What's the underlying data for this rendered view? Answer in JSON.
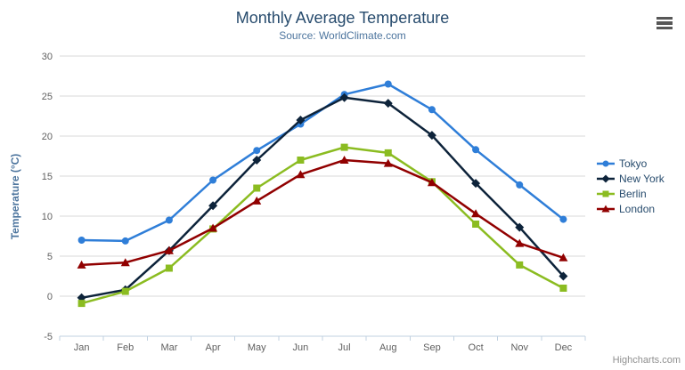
{
  "chart_data": {
    "type": "line",
    "title": "Monthly Average Temperature",
    "subtitle": "Source: WorldClimate.com",
    "xlabel": "",
    "ylabel": "Temperature (°C)",
    "ylim": [
      -5,
      30
    ],
    "ytick_step": 5,
    "grid": true,
    "legend_position": "right",
    "categories": [
      "Jan",
      "Feb",
      "Mar",
      "Apr",
      "May",
      "Jun",
      "Jul",
      "Aug",
      "Sep",
      "Oct",
      "Nov",
      "Dec"
    ],
    "series": [
      {
        "name": "Tokyo",
        "color": "#2f7ed8",
        "marker": "circle",
        "values": [
          7.0,
          6.9,
          9.5,
          14.5,
          18.2,
          21.5,
          25.2,
          26.5,
          23.3,
          18.3,
          13.9,
          9.6
        ]
      },
      {
        "name": "New York",
        "color": "#0d233a",
        "marker": "diamond",
        "values": [
          -0.2,
          0.8,
          5.7,
          11.3,
          17.0,
          22.0,
          24.8,
          24.1,
          20.1,
          14.1,
          8.6,
          2.5
        ]
      },
      {
        "name": "Berlin",
        "color": "#8bbc21",
        "marker": "square",
        "values": [
          -0.9,
          0.6,
          3.5,
          8.4,
          13.5,
          17.0,
          18.6,
          17.9,
          14.3,
          9.0,
          3.9,
          1.0
        ]
      },
      {
        "name": "London",
        "color": "#910000",
        "marker": "triangle",
        "values": [
          3.9,
          4.2,
          5.7,
          8.5,
          11.9,
          15.2,
          17.0,
          16.6,
          14.2,
          10.3,
          6.6,
          4.8
        ]
      }
    ]
  },
  "colors": {
    "title": "#274b6d",
    "subtitle": "#4d759e",
    "axis_labels": "#606060",
    "gridline": "#d8d8d8",
    "axis_line": "#c0d0e0",
    "legend_text": "#274b6d",
    "credits_text": "#8f8f8f"
  },
  "credits": {
    "label": "Highcharts.com"
  }
}
